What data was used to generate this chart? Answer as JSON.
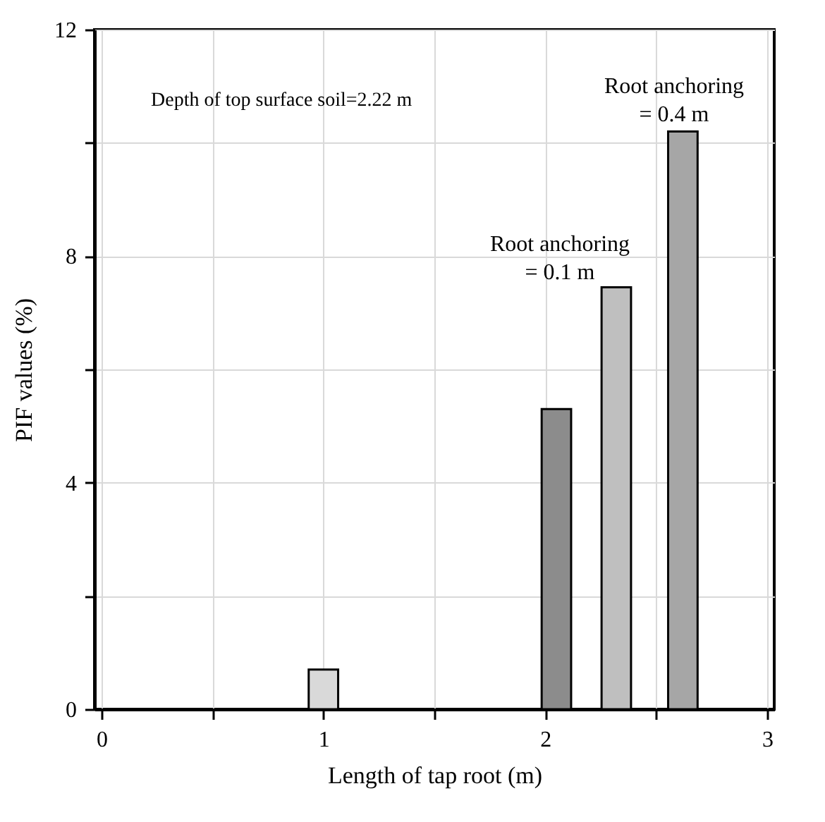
{
  "chart_data": {
    "type": "bar",
    "xlabel": "Length of tap root (m)",
    "ylabel": "PIF values (%)",
    "x": [
      1.0,
      2.05,
      2.32,
      2.62
    ],
    "values": [
      0.7,
      5.3,
      7.45,
      10.2
    ],
    "colors": [
      "#d9d9d9",
      "#8c8c8c",
      "#bfbfbf",
      "#a6a6a6"
    ],
    "xlim": [
      0,
      3
    ],
    "xticks": [
      0,
      {
        "value": 0.5,
        "label": null
      },
      1,
      {
        "value": 1.5,
        "label": null
      },
      2,
      {
        "value": 2.5,
        "label": null
      },
      3
    ],
    "ylim": [
      0,
      12
    ],
    "yticks": [
      0,
      {
        "value": 2,
        "label": null
      },
      4,
      {
        "value": 6,
        "label": null
      },
      8,
      {
        "value": 10,
        "label": null
      },
      12
    ],
    "grid": true,
    "annotations": [
      "Depth of top surface soil=2.22 m",
      "Root anchoring\n= 0.1 m",
      "Root anchoring\n= 0.4 m"
    ]
  }
}
